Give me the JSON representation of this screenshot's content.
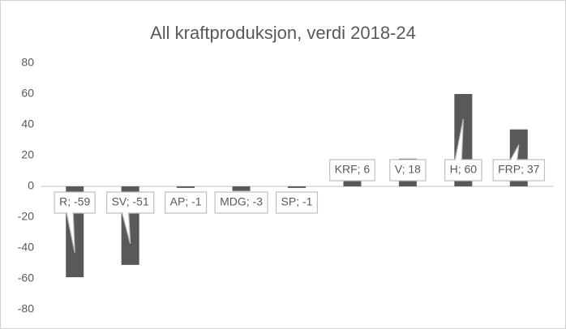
{
  "chart_data": {
    "type": "bar",
    "title": "All kraftproduksjon, verdi 2018-24",
    "values": [
      -59,
      -51,
      -1,
      -3,
      -1,
      6,
      18,
      60,
      37
    ],
    "value_labels": [
      "R; -59",
      "SV; -51",
      "AP; -1",
      "MDG; -3",
      "SP; -1",
      "KRF; 6",
      "V; 18",
      "H; 60",
      "FRP; 37"
    ],
    "color": "#595959",
    "ylim": [
      -80,
      80
    ],
    "yticks": [
      -80,
      -60,
      -40,
      -20,
      0,
      20,
      40,
      60,
      80
    ],
    "grid": false
  }
}
